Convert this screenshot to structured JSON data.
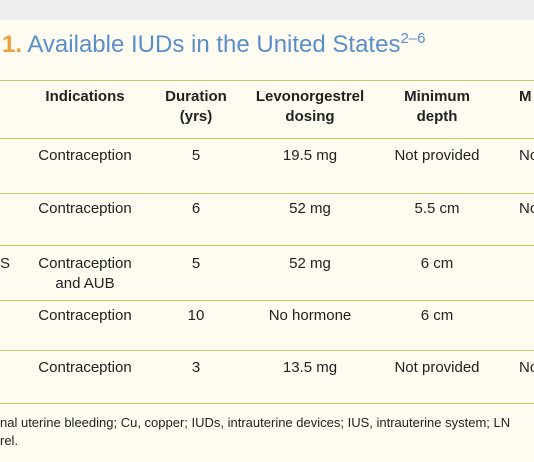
{
  "title": {
    "number": "1.",
    "text": "Available IUDs in the United States",
    "superscript": "2–6"
  },
  "table": {
    "columns": [
      null,
      "Indications",
      [
        "Duration",
        "(yrs)"
      ],
      [
        "Levonorgestrel",
        "dosing"
      ],
      [
        "Minimum",
        "depth"
      ],
      "M"
    ],
    "rows": [
      [
        null,
        "Contraception",
        "5",
        "19.5 mg",
        "Not provided",
        "No"
      ],
      [
        null,
        "Contraception",
        "6",
        "52 mg",
        "5.5 cm",
        "No"
      ],
      [
        "S",
        [
          "Contraception",
          "and AUB"
        ],
        "5",
        "52 mg",
        "6 cm",
        null
      ],
      [
        null,
        "Contraception",
        "10",
        "No hormone",
        "6 cm",
        null
      ],
      [
        null,
        "Contraception",
        "3",
        "13.5 mg",
        "Not provided",
        "No"
      ]
    ]
  },
  "footnote": [
    "nal uterine bleeding; Cu, copper; IUDs, intrauterine devices; IUS, intrauterine system; LN",
    "rel."
  ]
}
